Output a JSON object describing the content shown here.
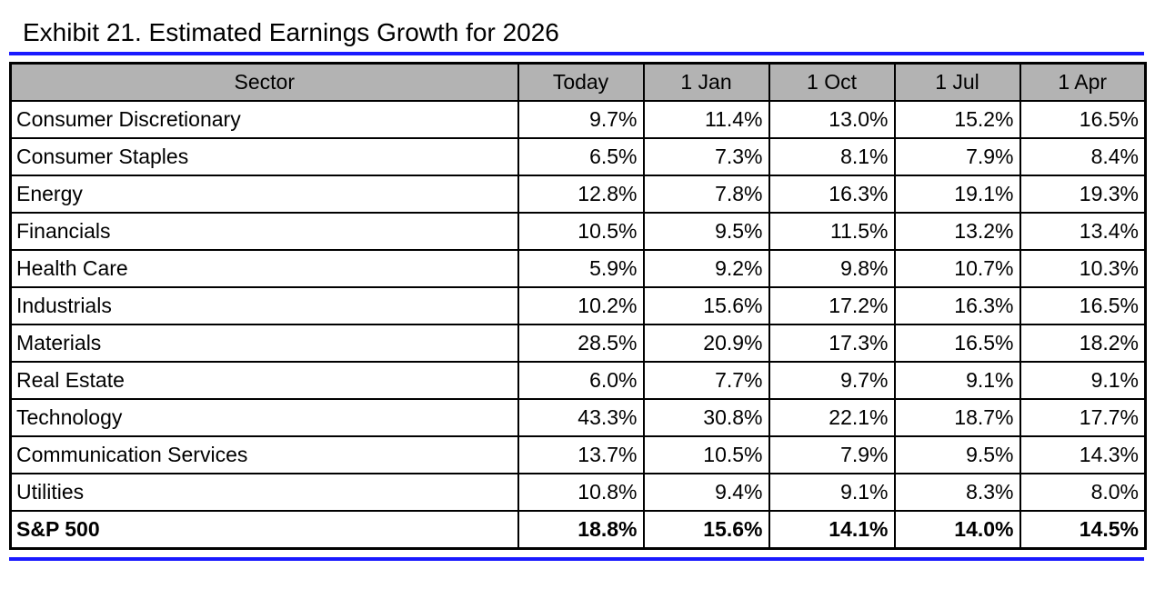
{
  "title": "Exhibit 21. Estimated Earnings Growth for 2026",
  "colors": {
    "rule_blue": "#1a1aff",
    "header_gray": "#b3b3b3",
    "border_black": "#000000"
  },
  "chart_data": {
    "type": "table",
    "title": "Exhibit 21. Estimated Earnings Growth for 2026",
    "columns": [
      "Sector",
      "Today",
      "1 Jan",
      "1 Oct",
      "1 Jul",
      "1 Apr"
    ],
    "rows": [
      {
        "sector": "Consumer Discretionary",
        "values": [
          "9.7%",
          "11.4%",
          "13.0%",
          "15.2%",
          "16.5%"
        ],
        "bold": false
      },
      {
        "sector": "Consumer Staples",
        "values": [
          "6.5%",
          "7.3%",
          "8.1%",
          "7.9%",
          "8.4%"
        ],
        "bold": false
      },
      {
        "sector": "Energy",
        "values": [
          "12.8%",
          "7.8%",
          "16.3%",
          "19.1%",
          "19.3%"
        ],
        "bold": false
      },
      {
        "sector": "Financials",
        "values": [
          "10.5%",
          "9.5%",
          "11.5%",
          "13.2%",
          "13.4%"
        ],
        "bold": false
      },
      {
        "sector": "Health Care",
        "values": [
          "5.9%",
          "9.2%",
          "9.8%",
          "10.7%",
          "10.3%"
        ],
        "bold": false
      },
      {
        "sector": "Industrials",
        "values": [
          "10.2%",
          "15.6%",
          "17.2%",
          "16.3%",
          "16.5%"
        ],
        "bold": false
      },
      {
        "sector": "Materials",
        "values": [
          "28.5%",
          "20.9%",
          "17.3%",
          "16.5%",
          "18.2%"
        ],
        "bold": false
      },
      {
        "sector": "Real Estate",
        "values": [
          "6.0%",
          "7.7%",
          "9.7%",
          "9.1%",
          "9.1%"
        ],
        "bold": false
      },
      {
        "sector": "Technology",
        "values": [
          "43.3%",
          "30.8%",
          "22.1%",
          "18.7%",
          "17.7%"
        ],
        "bold": false
      },
      {
        "sector": "Communication Services",
        "values": [
          "13.7%",
          "10.5%",
          "7.9%",
          "9.5%",
          "14.3%"
        ],
        "bold": false
      },
      {
        "sector": "Utilities",
        "values": [
          "10.8%",
          "9.4%",
          "9.1%",
          "8.3%",
          "8.0%"
        ],
        "bold": false
      },
      {
        "sector": "S&P 500",
        "values": [
          "18.8%",
          "15.6%",
          "14.1%",
          "14.0%",
          "14.5%"
        ],
        "bold": true
      }
    ]
  }
}
